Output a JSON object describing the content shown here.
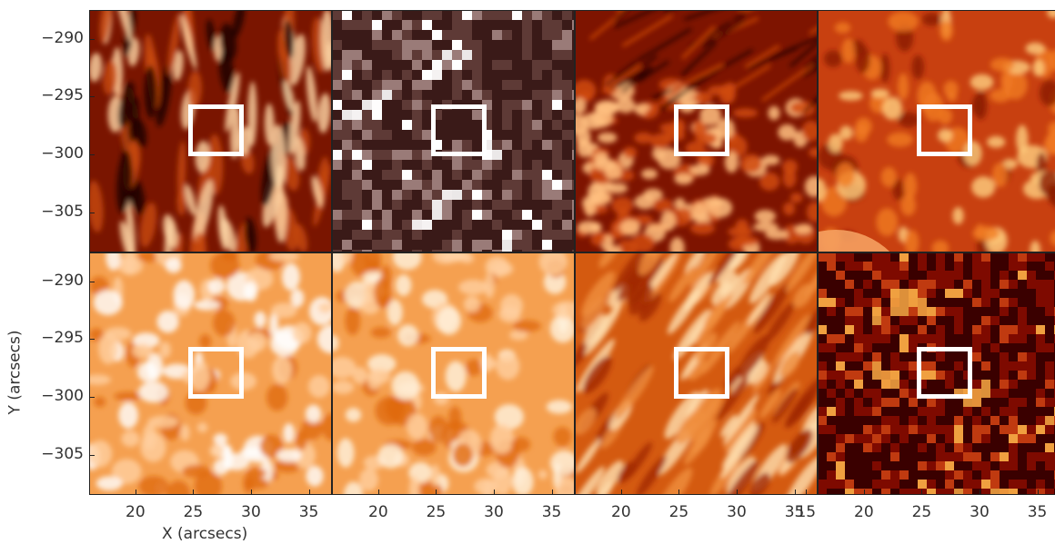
{
  "axes": {
    "y_title": "Y (arcsecs)",
    "x_title": "X (arcsecs)",
    "y_ticks": [
      "−290",
      "−295",
      "−300",
      "−305"
    ],
    "y_tick_values": [
      -290,
      -295,
      -300,
      -305
    ],
    "x_tick_values": [
      20,
      25,
      30,
      35
    ],
    "x_ticks_panels": [
      [
        "20",
        "25",
        "30",
        "35"
      ],
      [
        "20",
        "25",
        "30",
        "35"
      ],
      [
        "20",
        "25",
        "30",
        "35"
      ],
      [
        "15",
        "20",
        "25",
        "30",
        "35"
      ]
    ],
    "x_range": [
      16,
      37
    ],
    "y_range": [
      -308.5,
      -287.5
    ]
  },
  "panels": [
    {
      "id": "top-1",
      "palette": "dark-red",
      "colors": [
        "#1a0000",
        "#7a1500",
        "#c84a10",
        "#ffd8a8"
      ]
    },
    {
      "id": "top-2",
      "palette": "mauve-gray",
      "colors": [
        "#3a1a18",
        "#5e3a36",
        "#9a7b78",
        "#ffffff"
      ]
    },
    {
      "id": "top-3",
      "palette": "dark-red-granulation",
      "colors": [
        "#2a0000",
        "#7e1400",
        "#d04a10",
        "#ffc080"
      ]
    },
    {
      "id": "top-4",
      "palette": "red-orange",
      "colors": [
        "#8a1a00",
        "#c84010",
        "#f07a20",
        "#ffd080"
      ]
    },
    {
      "id": "bottom-1",
      "palette": "light-orange",
      "colors": [
        "#e06a10",
        "#f5a050",
        "#ffd0a0",
        "#ffffff"
      ]
    },
    {
      "id": "bottom-2",
      "palette": "light-orange",
      "colors": [
        "#e06a10",
        "#f5a050",
        "#ffd0a0",
        "#fff4e0"
      ]
    },
    {
      "id": "bottom-3",
      "palette": "orange-fibrils",
      "colors": [
        "#a02800",
        "#d45a10",
        "#f09040",
        "#ffe0b0"
      ]
    },
    {
      "id": "bottom-4",
      "palette": "dark-red-pixelated",
      "colors": [
        "#3a0000",
        "#7e0a00",
        "#c03a10",
        "#f0a040"
      ]
    }
  ],
  "roi": {
    "x_range": [
      24.6,
      29.4
    ],
    "y_range": [
      -300.2,
      -295.7
    ]
  }
}
